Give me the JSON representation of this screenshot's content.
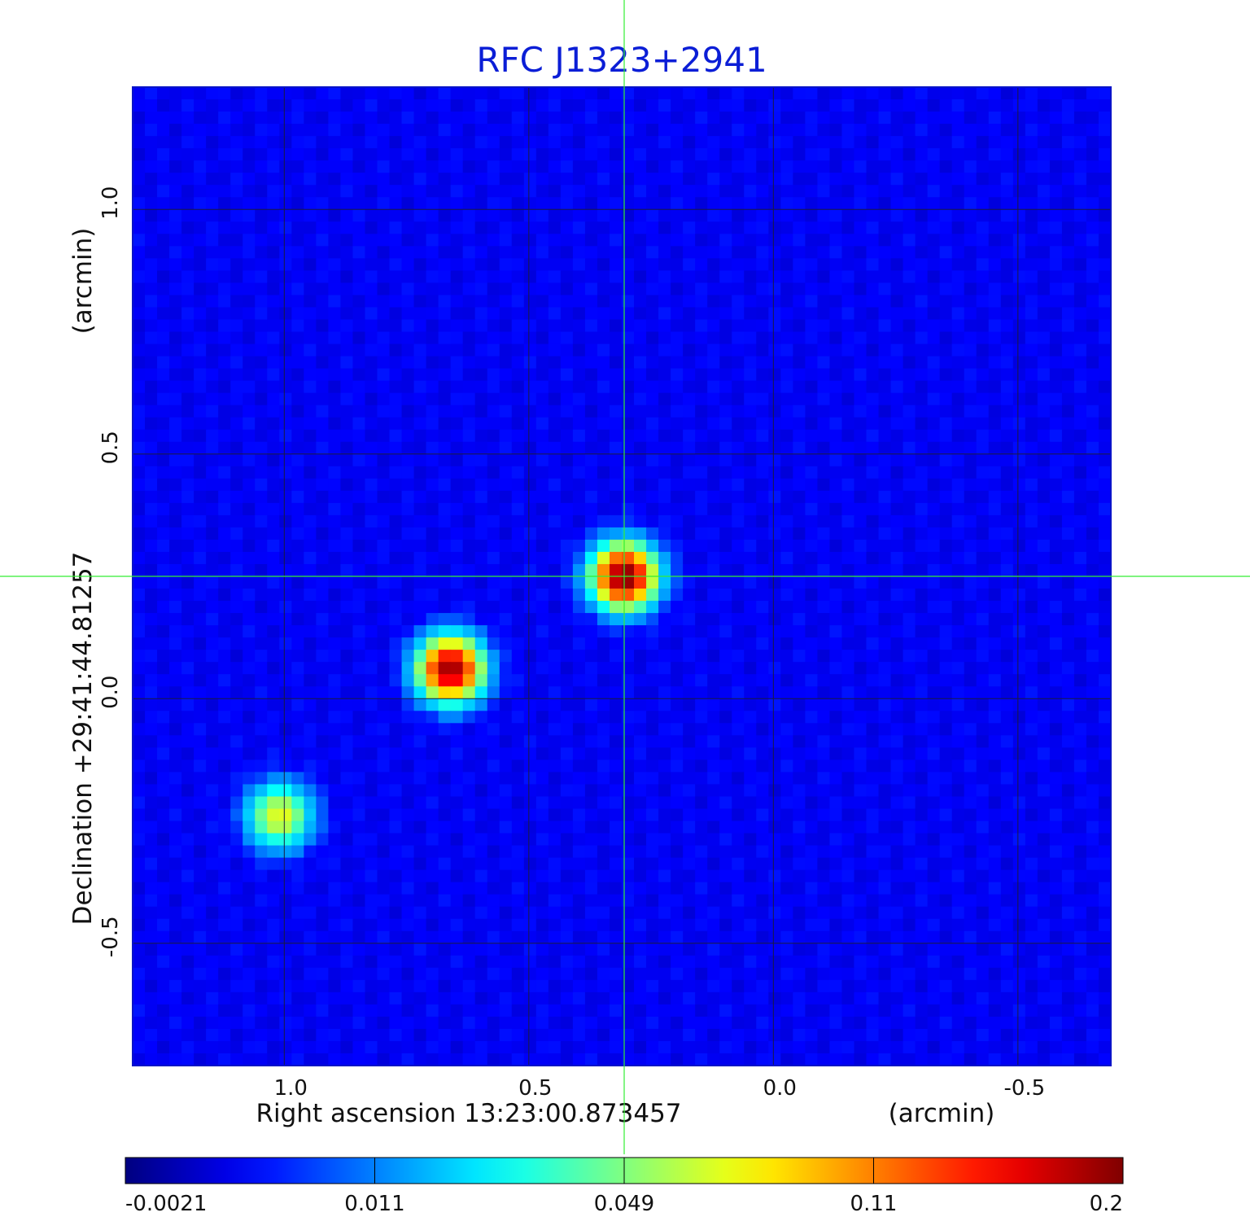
{
  "chart_data": {
    "type": "heatmap",
    "title": "RFC J1323+2941",
    "xlabel": "Right ascension  13:23:00.873457",
    "xunit": "(arcmin)",
    "ylabel": "Declination  +29:41:44.81257",
    "yunit": "(arcmin)",
    "xlim": [
      1.31,
      -0.69
    ],
    "ylim": [
      -0.75,
      1.25
    ],
    "x_axis_reversed": true,
    "grid": true,
    "x_ticks": [
      1.0,
      0.5,
      0.0,
      -0.5
    ],
    "x_tick_labels": [
      "1.0",
      "0.5",
      "0.0",
      "-0.5"
    ],
    "y_ticks": [
      1.0,
      0.5,
      0.0,
      -0.5
    ],
    "y_tick_labels": [
      "1.0",
      "0.5",
      "0.0",
      "-0.5"
    ],
    "crosshair": {
      "x": 0.305,
      "y": 0.25,
      "color": "#33ee33"
    },
    "background_level": 0.004,
    "sources": [
      {
        "x": 0.305,
        "y": 0.25,
        "peak": 0.2
      },
      {
        "x": 0.66,
        "y": 0.06,
        "peak": 0.19
      },
      {
        "x": 1.01,
        "y": -0.24,
        "peak": 0.07
      }
    ],
    "colorbar": {
      "tick_values": [
        -0.0021,
        0.011,
        0.049,
        0.11,
        0.2
      ],
      "tick_labels": [
        "-0.0021",
        "0.011",
        "0.049",
        "0.11",
        "0.2"
      ],
      "colormap": "jet"
    }
  }
}
